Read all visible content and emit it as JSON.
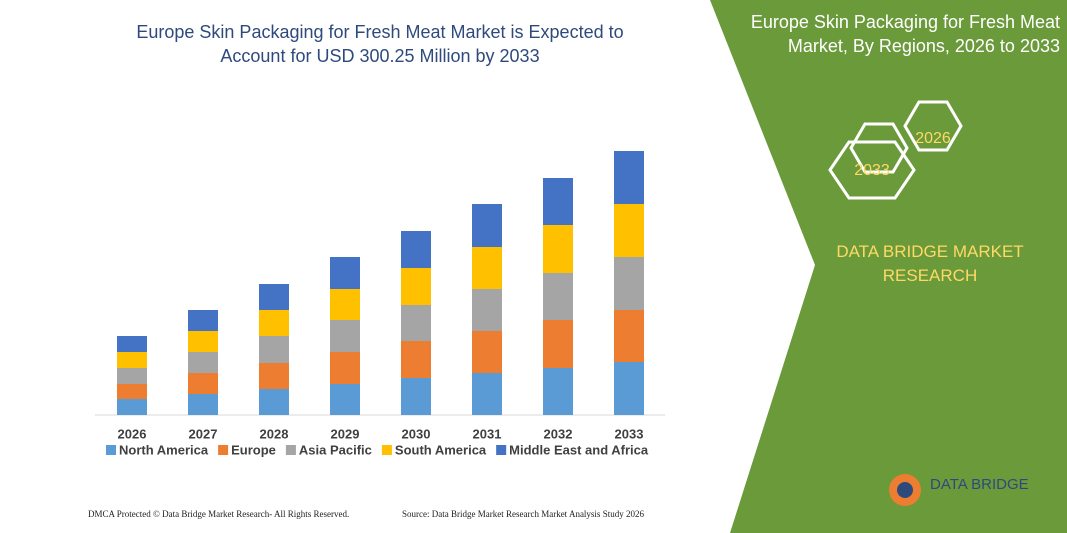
{
  "header": {
    "title": "Europe Skin Packaging for Fresh Meat Market is Expected to Account for USD 300.25 Million by 2033",
    "side_title": "Europe Skin Packaging for Fresh Meat Market, By Regions, 2026 to 2033",
    "hex_1": "2026",
    "hex_2": "2033",
    "brand": "DATA BRIDGE MARKET RESEARCH",
    "logo": "DATA BRIDGE"
  },
  "footer": {
    "left": "DMCA Protected © Data Bridge Market Research- All Rights Reserved.",
    "right": "Source: Data Bridge Market Research Market Analysis Study 2026"
  },
  "chart_data": {
    "type": "stacked_bar",
    "categories": [
      "2026",
      "2027",
      "2028",
      "2029",
      "2030",
      "2031",
      "2032",
      "2033"
    ],
    "ylim": [
      0,
      264
    ],
    "series": [
      {
        "name": "North America",
        "color": "#5b9bd5",
        "values": [
          16,
          21,
          26,
          31,
          37,
          42,
          47,
          53
        ]
      },
      {
        "name": "Europe",
        "color": "#ed7d31",
        "values": [
          15,
          21,
          26,
          32,
          37,
          42,
          48,
          52
        ]
      },
      {
        "name": "Asia Pacific",
        "color": "#a5a5a5",
        "values": [
          16,
          21,
          27,
          32,
          36,
          42,
          47,
          53
        ]
      },
      {
        "name": "South America",
        "color": "#ffc000",
        "values": [
          16,
          21,
          26,
          31,
          37,
          42,
          48,
          53
        ]
      },
      {
        "name": "Middle East and Africa",
        "color": "#4472c4",
        "values": [
          16,
          21,
          26,
          32,
          37,
          43,
          47,
          53
        ]
      }
    ]
  }
}
